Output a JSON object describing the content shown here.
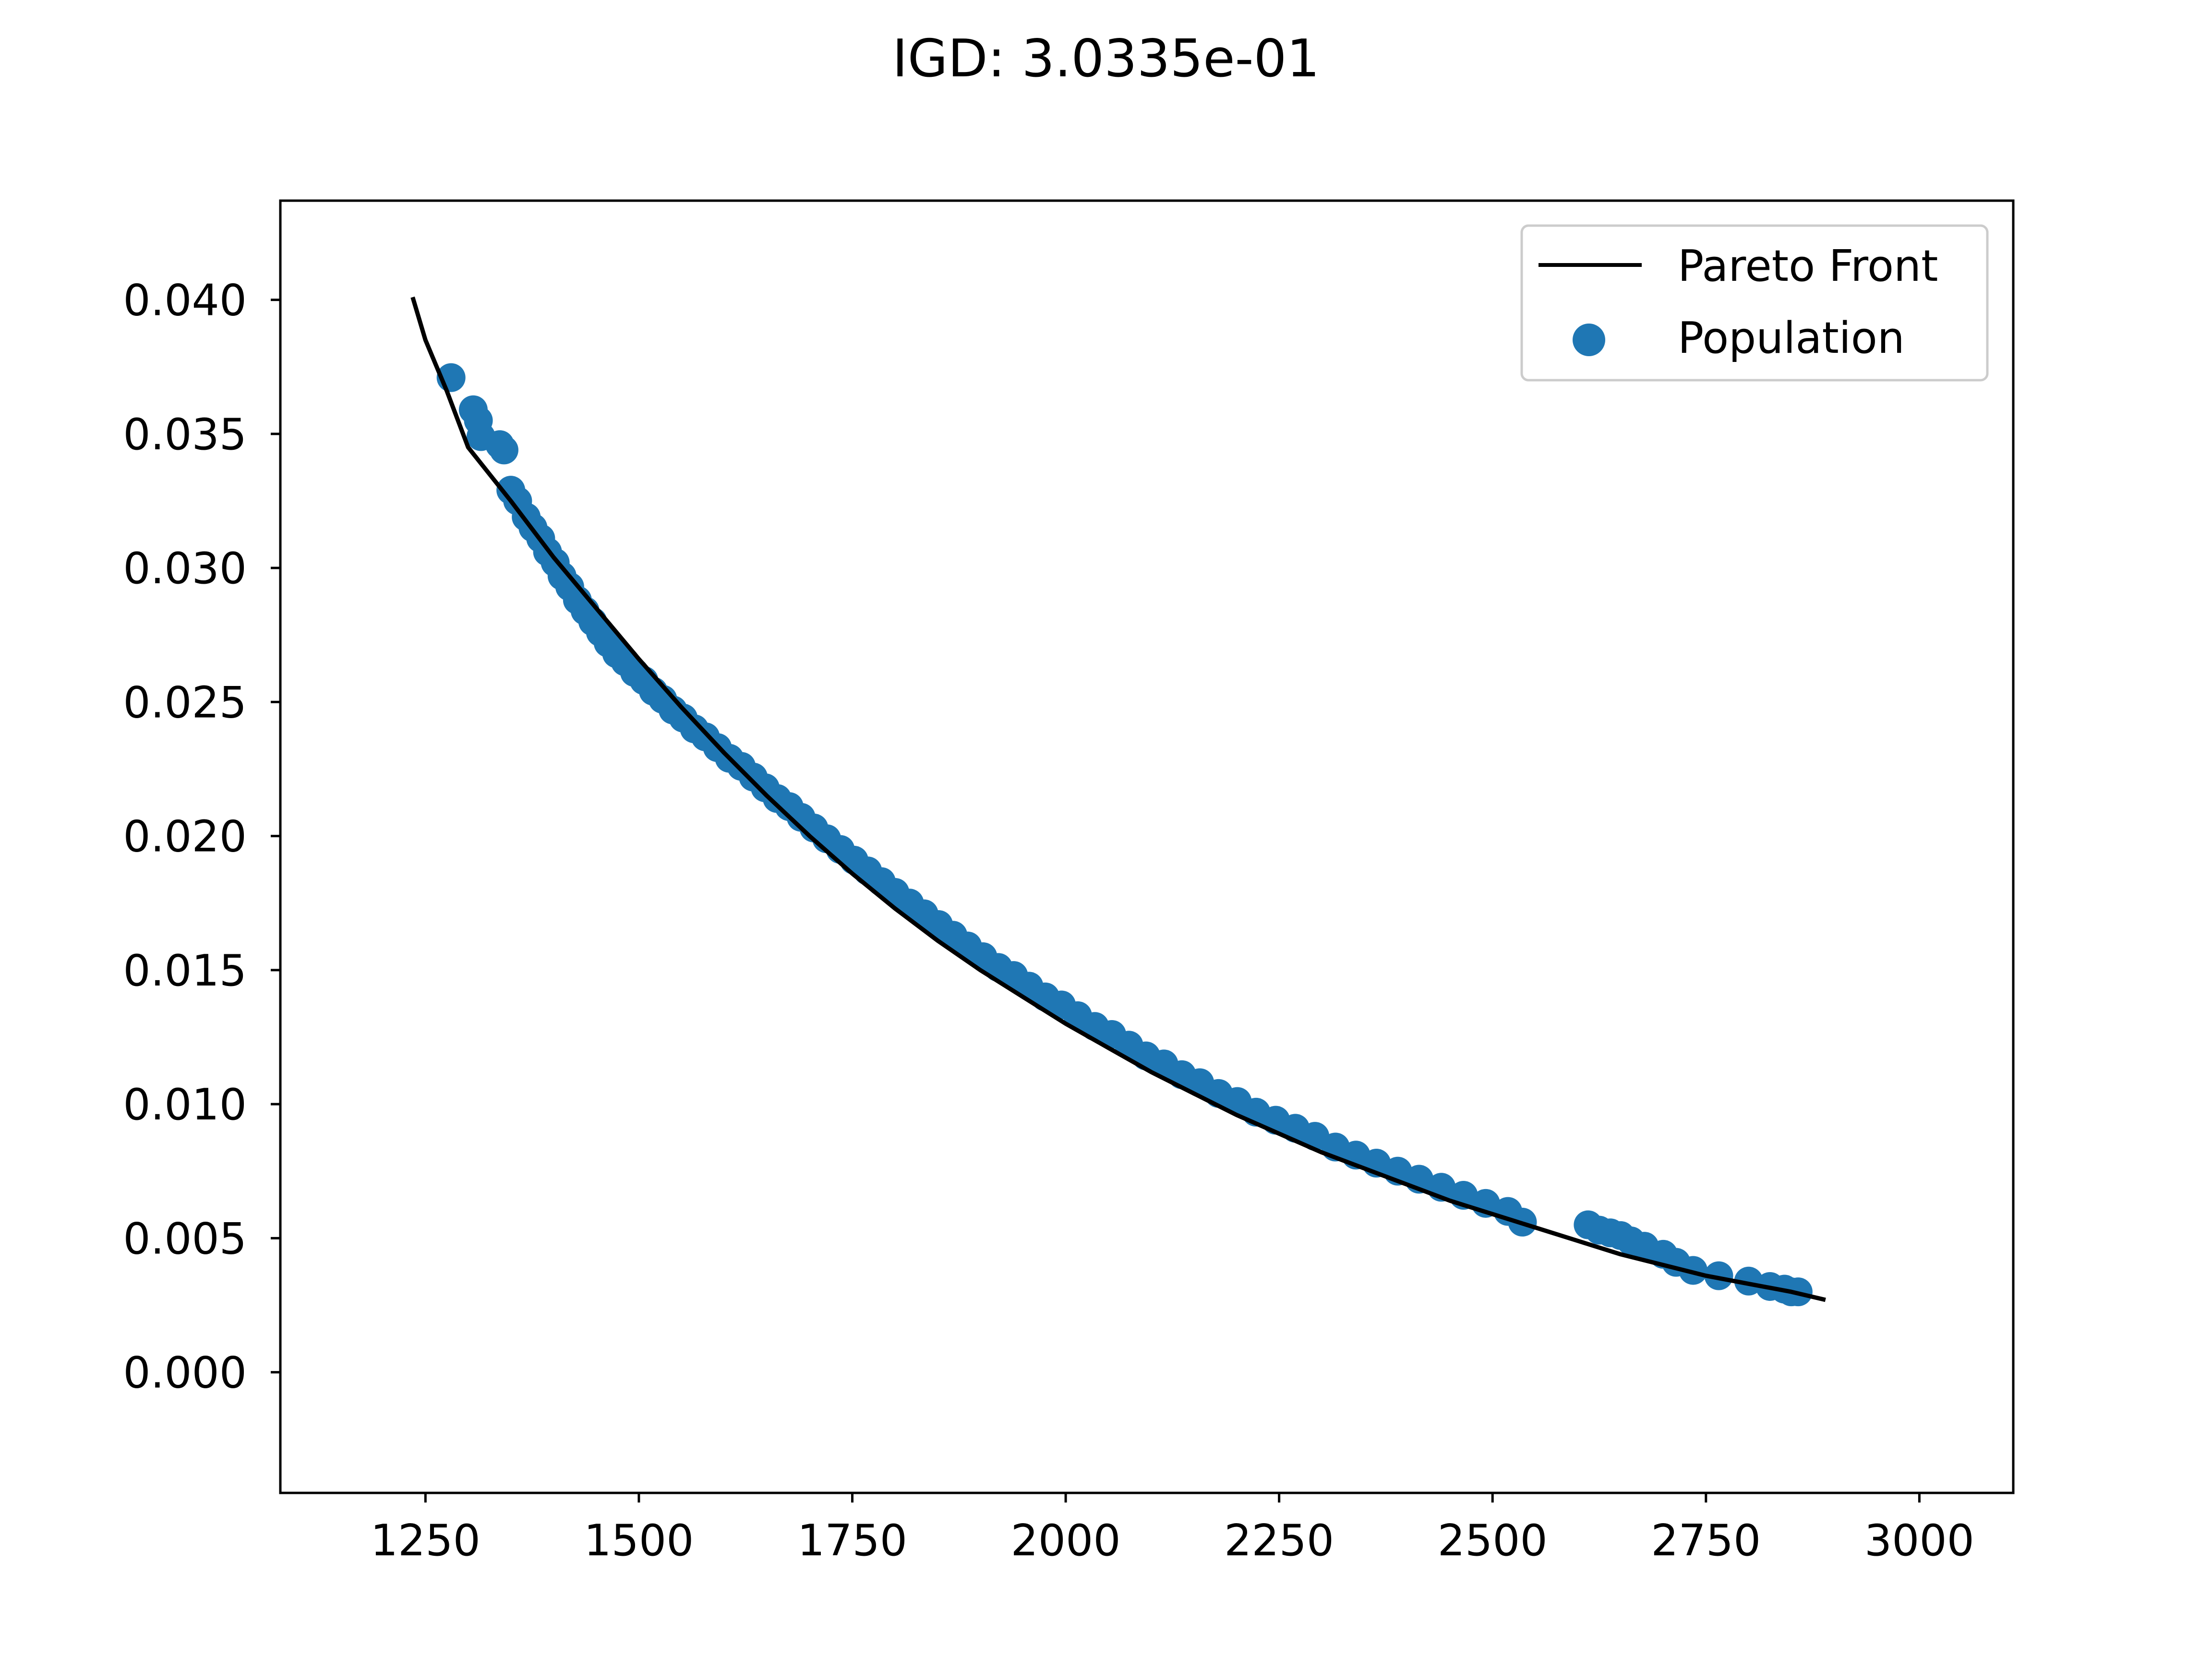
{
  "chart_data": {
    "type": "scatter",
    "title": "IGD: 3.0335e-01",
    "xlabel": "",
    "ylabel": "",
    "xlim": [
      1080,
      3110
    ],
    "ylim": [
      -0.0045,
      0.0437
    ],
    "xticks": [
      1250,
      1500,
      1750,
      2000,
      2250,
      2500,
      2750,
      3000
    ],
    "xtick_labels": [
      "1250",
      "1500",
      "1750",
      "2000",
      "2250",
      "2500",
      "2750",
      "3000"
    ],
    "yticks": [
      0.0,
      0.005,
      0.01,
      0.015,
      0.02,
      0.025,
      0.03,
      0.035,
      0.04
    ],
    "ytick_labels": [
      "0.000",
      "0.005",
      "0.010",
      "0.015",
      "0.020",
      "0.025",
      "0.030",
      "0.035",
      "0.040"
    ],
    "grid": false,
    "legend_position": "top-right",
    "series": [
      {
        "name": "Pareto Front",
        "kind": "line",
        "color": "#000000",
        "x": [
          1235,
          1250,
          1275,
          1300,
          1350,
          1400,
          1450,
          1500,
          1550,
          1600,
          1650,
          1700,
          1750,
          1800,
          1850,
          1900,
          1950,
          2000,
          2050,
          2100,
          2150,
          2200,
          2250,
          2300,
          2350,
          2400,
          2450,
          2500,
          2550,
          2600,
          2650,
          2700,
          2750,
          2800,
          2850,
          2890
        ],
        "y": [
          0.0401,
          0.0385,
          0.0366,
          0.0345,
          0.0325,
          0.0304,
          0.0285,
          0.0266,
          0.0248,
          0.0231,
          0.0215,
          0.02,
          0.0186,
          0.0173,
          0.0161,
          0.015,
          0.014,
          0.013,
          0.0121,
          0.0112,
          0.0104,
          0.0096,
          0.0089,
          0.0082,
          0.0076,
          0.007,
          0.0064,
          0.0059,
          0.0054,
          0.0049,
          0.0044,
          0.004,
          0.0036,
          0.0033,
          0.003,
          0.0027
        ]
      },
      {
        "name": "Population",
        "kind": "scatter",
        "color": "#1f77b4",
        "x": [
          1280,
          1306,
          1312,
          1315,
          1337,
          1342,
          1350,
          1358,
          1368,
          1376,
          1385,
          1393,
          1402,
          1410,
          1419,
          1428,
          1437,
          1446,
          1455,
          1464,
          1474,
          1484,
          1495,
          1506,
          1517,
          1528,
          1540,
          1552,
          1565,
          1578,
          1592,
          1606,
          1620,
          1634,
          1648,
          1662,
          1676,
          1690,
          1705,
          1720,
          1736,
          1752,
          1768,
          1784,
          1800,
          1817,
          1834,
          1851,
          1868,
          1885,
          1903,
          1921,
          1939,
          1957,
          1976,
          1995,
          2014,
          2034,
          2054,
          2074,
          2094,
          2115,
          2136,
          2157,
          2179,
          2201,
          2223,
          2246,
          2269,
          2292,
          2316,
          2340,
          2364,
          2389,
          2414,
          2440,
          2466,
          2492,
          2518,
          2535,
          2612,
          2625,
          2638,
          2650,
          2662,
          2678,
          2700,
          2715,
          2735,
          2765,
          2800,
          2825,
          2842,
          2850,
          2858
        ],
        "y": [
          0.0371,
          0.0359,
          0.0355,
          0.0349,
          0.0346,
          0.0344,
          0.0329,
          0.0325,
          0.0319,
          0.0315,
          0.0311,
          0.0306,
          0.0302,
          0.0297,
          0.0293,
          0.0288,
          0.0284,
          0.028,
          0.0276,
          0.0272,
          0.0268,
          0.0265,
          0.0261,
          0.0258,
          0.0254,
          0.0251,
          0.0247,
          0.0244,
          0.024,
          0.0237,
          0.0233,
          0.0229,
          0.0226,
          0.0222,
          0.0218,
          0.0214,
          0.0211,
          0.0207,
          0.0203,
          0.0199,
          0.0195,
          0.0191,
          0.0187,
          0.0183,
          0.0179,
          0.0175,
          0.0171,
          0.0167,
          0.0163,
          0.0159,
          0.0155,
          0.0151,
          0.0148,
          0.0144,
          0.014,
          0.0137,
          0.0133,
          0.0129,
          0.0126,
          0.0122,
          0.0118,
          0.0115,
          0.0111,
          0.0108,
          0.0104,
          0.0101,
          0.0097,
          0.0094,
          0.0091,
          0.0088,
          0.0084,
          0.0081,
          0.0078,
          0.0075,
          0.0072,
          0.0069,
          0.0066,
          0.0063,
          0.006,
          0.0056,
          0.0055,
          0.0053,
          0.0052,
          0.0051,
          0.0049,
          0.0047,
          0.0044,
          0.0041,
          0.0038,
          0.0036,
          0.0034,
          0.0032,
          0.0031,
          0.003,
          0.003
        ]
      }
    ]
  }
}
